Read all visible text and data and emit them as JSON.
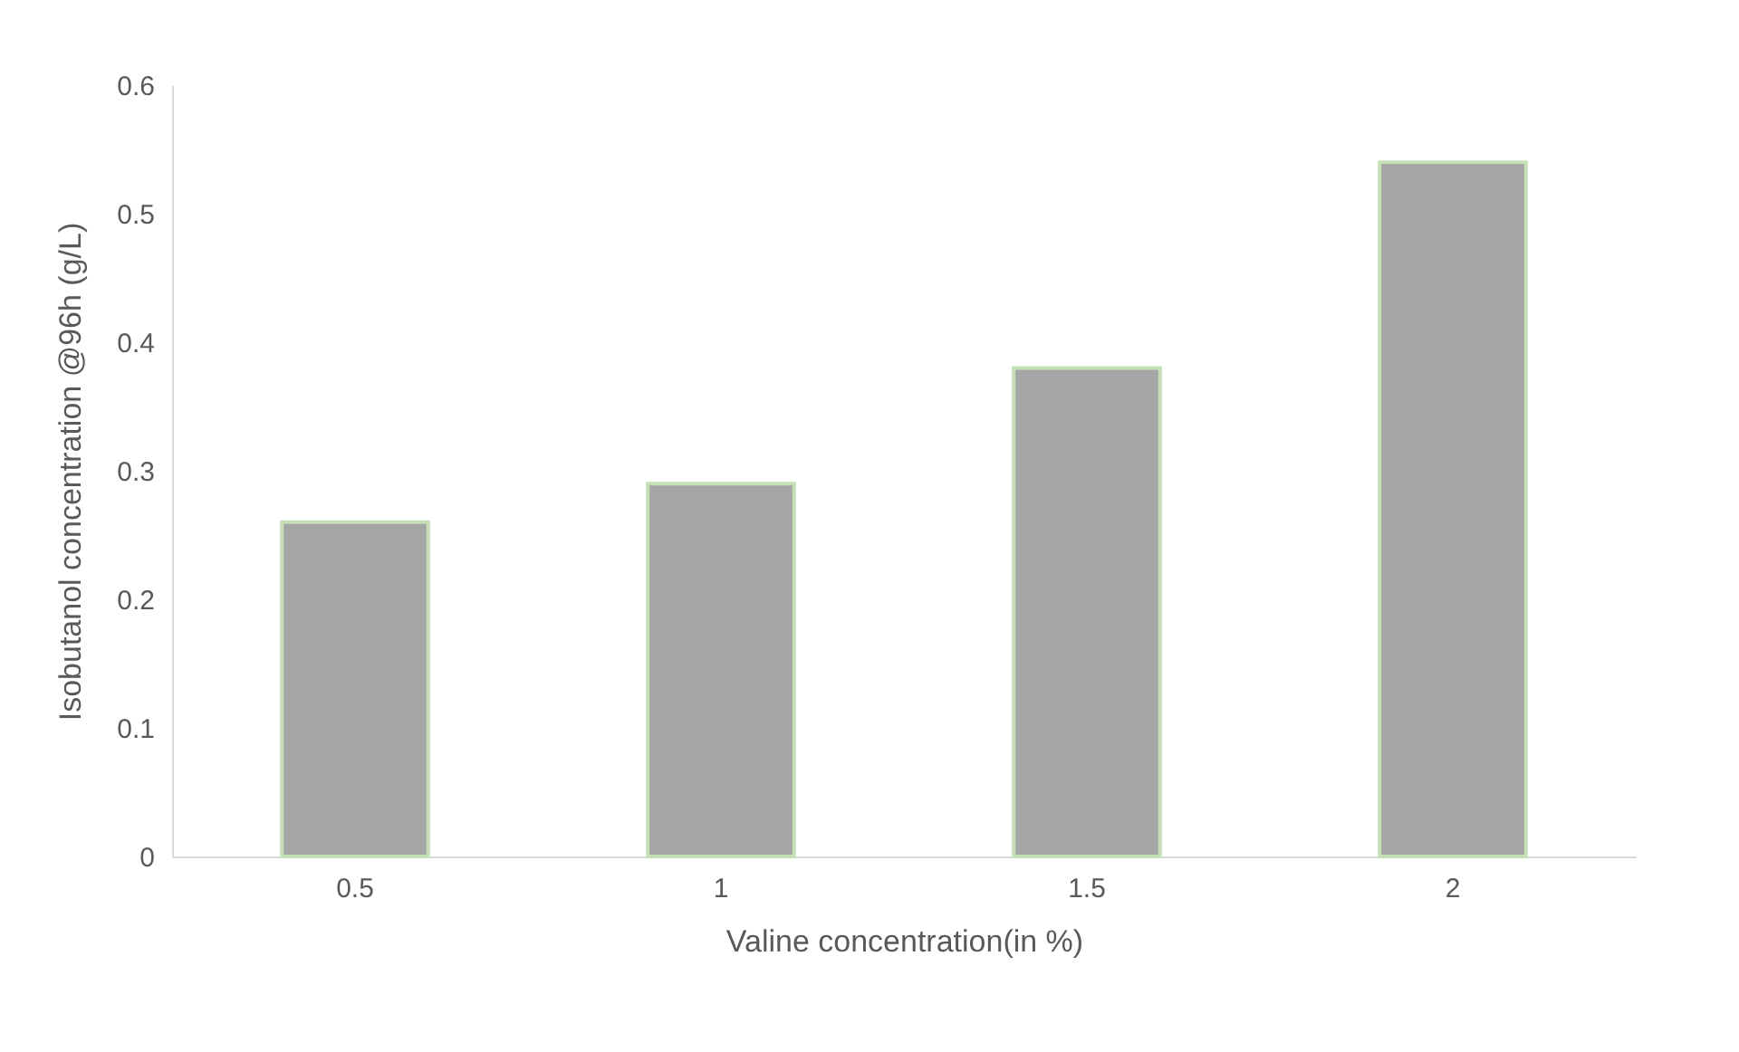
{
  "chart_data": {
    "type": "bar",
    "xlabel": "Valine concentration(in %)",
    "ylabel": "Isobutanol concentration @96h (g/L)",
    "categories": [
      "0.5",
      "1",
      "1.5",
      "2"
    ],
    "values": [
      0.26,
      0.29,
      0.38,
      0.54
    ],
    "color": "#a5a5a5",
    "ylim": [
      0,
      0.6
    ],
    "yticks": [
      0,
      0.1,
      0.2,
      0.3,
      0.4,
      0.5,
      0.6
    ],
    "grid": false
  }
}
